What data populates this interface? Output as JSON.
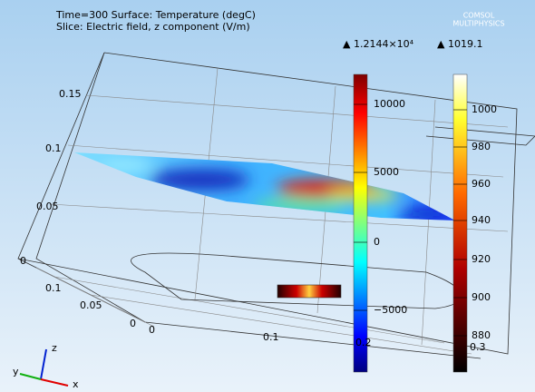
{
  "header": {
    "lines": [
      "Time=300  Surface: Temperature (degC)",
      "Slice: Electric field, z component (V/m)"
    ],
    "logo": [
      "COMSOL",
      "MULTIPHYSICS"
    ]
  },
  "colorbars": [
    {
      "max_label": "▲ 1.2144×10⁴",
      "ticks": [
        "10000",
        "5000",
        "0",
        "−5000"
      ]
    },
    {
      "max_label": "▲ 1019.1",
      "ticks": [
        "1000",
        "980",
        "960",
        "940",
        "920",
        "900",
        "880"
      ]
    }
  ],
  "axes": {
    "z_ticks": [
      "0.15",
      "0.1",
      "0.05",
      "0"
    ],
    "y_ticks": [
      "0.1",
      "0.05",
      "0"
    ],
    "x_ticks": [
      "0",
      "0.1",
      "0.2",
      "0.3"
    ],
    "triad": [
      "x",
      "y",
      "z"
    ]
  }
}
